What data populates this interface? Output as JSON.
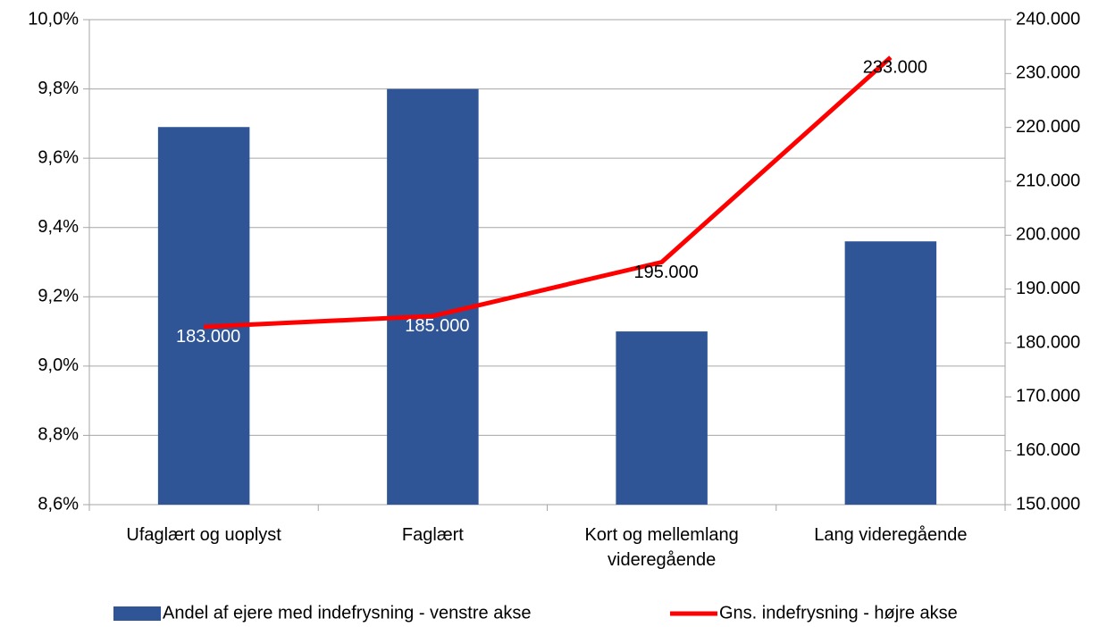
{
  "chart_data": {
    "type": "bar_line",
    "categories": [
      "Ufaglært og uoplyst",
      "Faglært",
      "Kort og mellemlang videregående",
      "Lang videregående"
    ],
    "series": [
      {
        "name": "Andel af ejere med indefrysning - venstre akse",
        "type": "bar",
        "color": "#2f5597",
        "values": [
          9.69,
          9.8,
          9.1,
          9.36
        ]
      },
      {
        "name": "Gns. indefrysning - højre akse",
        "type": "line",
        "axis": "y2",
        "color": "#ff0000",
        "values": [
          183000,
          185000,
          195000,
          233000
        ],
        "value_labels": [
          "183.000",
          "185.000",
          "195.000",
          "233.000"
        ]
      }
    ],
    "ylim": [
      8.6,
      10.0
    ],
    "yticks": [
      {
        "value": 8.6,
        "label": "8,6%"
      },
      {
        "value": 8.8,
        "label": "8,8%"
      },
      {
        "value": 9.0,
        "label": "9,0%"
      },
      {
        "value": 9.2,
        "label": "9,2%"
      },
      {
        "value": 9.4,
        "label": "9,4%"
      },
      {
        "value": 9.6,
        "label": "9,6%"
      },
      {
        "value": 9.8,
        "label": "9,8%"
      },
      {
        "value": 10.0,
        "label": "10,0%"
      }
    ],
    "y2lim": [
      150000,
      240000
    ],
    "y2ticks": [
      {
        "value": 150000,
        "label": "150.000"
      },
      {
        "value": 160000,
        "label": "160.000"
      },
      {
        "value": 170000,
        "label": "170.000"
      },
      {
        "value": 180000,
        "label": "180.000"
      },
      {
        "value": 190000,
        "label": "190.000"
      },
      {
        "value": 200000,
        "label": "200.000"
      },
      {
        "value": 210000,
        "label": "210.000"
      },
      {
        "value": 220000,
        "label": "220.000"
      },
      {
        "value": 230000,
        "label": "230.000"
      },
      {
        "value": 240000,
        "label": "240.000"
      }
    ],
    "grid": true,
    "legend": "bottom"
  }
}
